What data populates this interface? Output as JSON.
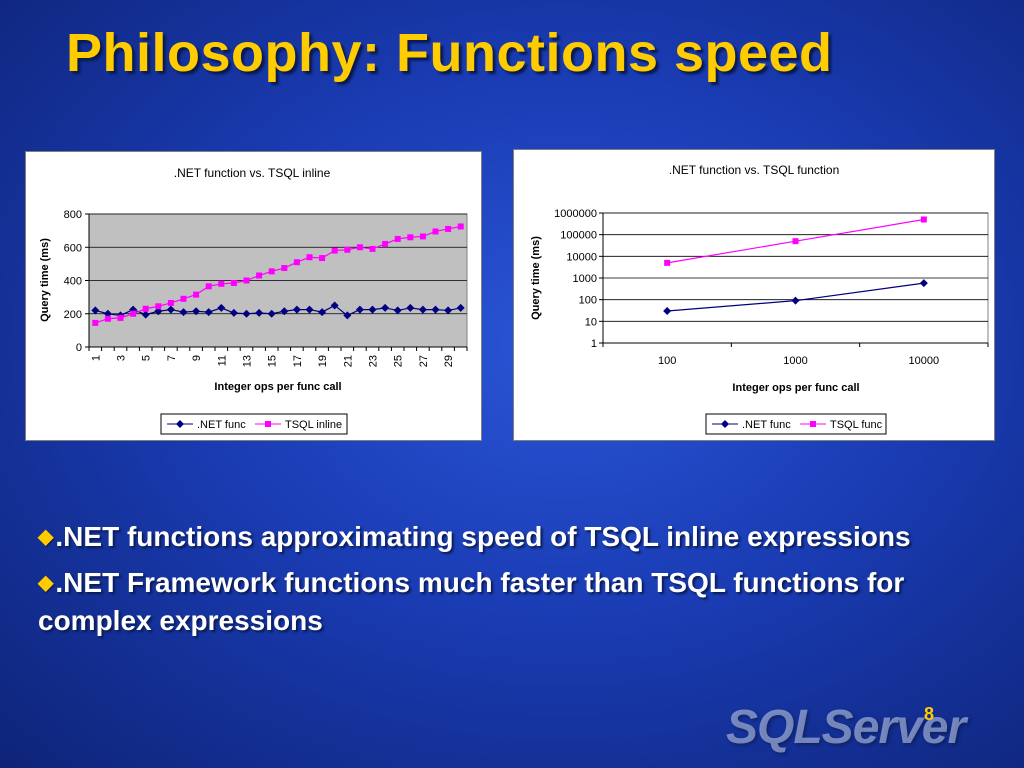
{
  "title": "Philosophy: Functions speed",
  "bullets": [
    ".NET functions approximating speed of TSQL inline expressions",
    ".NET Framework functions much faster than TSQL functions for complex expressions"
  ],
  "page_number": "8",
  "logo_text": "SQLServer",
  "colors": {
    "net": "#000080",
    "tsql": "#ff00ff",
    "title": "#ffcc00",
    "plot_bg_left": "#c0c0c0"
  },
  "chart_data": [
    {
      "type": "line",
      "title": ".NET function vs. TSQL inline",
      "xlabel": "Integer ops per func call",
      "ylabel": "Query time (ms)",
      "x": [
        1,
        2,
        3,
        4,
        5,
        6,
        7,
        8,
        9,
        10,
        11,
        12,
        13,
        14,
        15,
        16,
        17,
        18,
        19,
        20,
        21,
        22,
        23,
        24,
        25,
        26,
        27,
        28,
        29,
        30
      ],
      "x_tick_labels": [
        "1",
        "3",
        "5",
        "7",
        "9",
        "11",
        "13",
        "15",
        "17",
        "19",
        "21",
        "23",
        "25",
        "27",
        "29"
      ],
      "ylim": [
        0,
        800
      ],
      "y_ticks": [
        "0",
        "200",
        "400",
        "600",
        "800"
      ],
      "grid": true,
      "legend": "bottom",
      "series": [
        {
          "name": ".NET func",
          "values": [
            220,
            200,
            190,
            225,
            195,
            215,
            225,
            210,
            215,
            210,
            235,
            205,
            200,
            205,
            200,
            215,
            225,
            225,
            210,
            250,
            190,
            225,
            225,
            235,
            220,
            235,
            225,
            225,
            220,
            235
          ]
        },
        {
          "name": "TSQL inline",
          "values": [
            145,
            170,
            175,
            200,
            230,
            245,
            265,
            290,
            315,
            365,
            380,
            385,
            400,
            430,
            455,
            475,
            510,
            540,
            535,
            580,
            585,
            600,
            590,
            620,
            650,
            660,
            665,
            695,
            710,
            725
          ]
        }
      ]
    },
    {
      "type": "line",
      "title": ".NET function vs. TSQL function",
      "xlabel": "Integer ops per func call",
      "ylabel": "Query time (ms)",
      "categories": [
        "100",
        "1000",
        "10000"
      ],
      "y_scale": "log",
      "ylim": [
        1,
        1000000
      ],
      "y_ticks": [
        "1",
        "10",
        "100",
        "1000",
        "10000",
        "100000",
        "1000000"
      ],
      "grid": true,
      "legend": "bottom",
      "series": [
        {
          "name": ".NET func",
          "values": [
            30,
            90,
            580
          ]
        },
        {
          "name": "TSQL func",
          "values": [
            5000,
            50000,
            500000
          ]
        }
      ]
    }
  ]
}
